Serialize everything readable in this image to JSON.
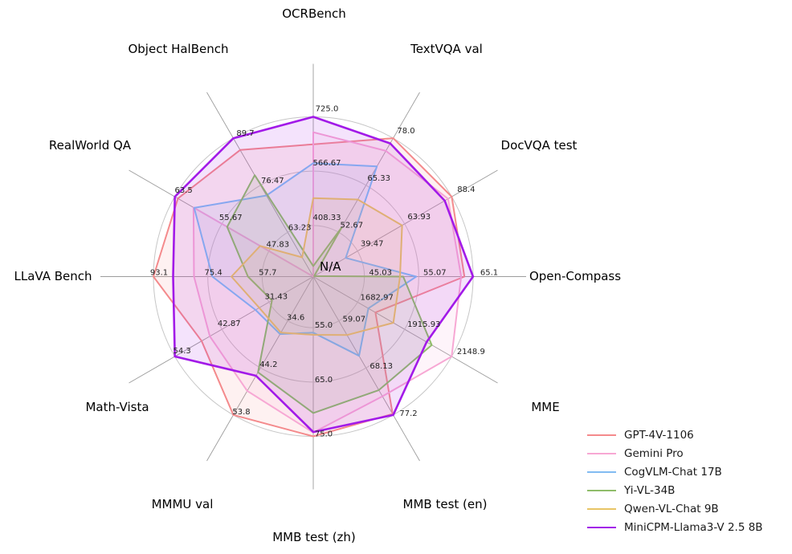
{
  "figure": {
    "background": "#ffffff",
    "center_label": "N/A"
  },
  "chart_data": {
    "type": "radar",
    "title": "",
    "center_label": "N/A",
    "grid": true,
    "ring_fractions": [
      0.32,
      0.66,
      1.0
    ],
    "legend_position": "lower right",
    "axes": [
      {
        "label": "OCRBench",
        "ticks": [
          "408.33",
          "566.67",
          "725.0"
        ]
      },
      {
        "label": "TextVQA val",
        "ticks": [
          "52.67",
          "65.33",
          "78.0"
        ]
      },
      {
        "label": "DocVQA test",
        "ticks": [
          "39.47",
          "63.93",
          "88.4"
        ]
      },
      {
        "label": "Open-Compass",
        "ticks": [
          "45.03",
          "55.07",
          "65.1"
        ]
      },
      {
        "label": "MME",
        "ticks": [
          "1682.97",
          "1915.93",
          "2148.9"
        ]
      },
      {
        "label": "MMB test (en)",
        "ticks": [
          "59.07",
          "68.13",
          "77.2"
        ]
      },
      {
        "label": "MMB test (zh)",
        "ticks": [
          "55.0",
          "65.0",
          "75.0"
        ]
      },
      {
        "label": "MMMU val",
        "ticks": [
          "34.6",
          "44.2",
          "53.8"
        ]
      },
      {
        "label": "Math-Vista",
        "ticks": [
          "31.43",
          "42.87",
          "54.3"
        ]
      },
      {
        "label": "LLaVA Bench",
        "ticks": [
          "57.7",
          "75.4",
          "93.1"
        ]
      },
      {
        "label": "RealWorld QA",
        "ticks": [
          "47.83",
          "55.67",
          "63.5"
        ]
      },
      {
        "label": "Object HalBench",
        "ticks": [
          "63.23",
          "76.47",
          "89.7"
        ]
      }
    ],
    "series": [
      {
        "name": "GPT-4V-1106",
        "color": "#f48a8c",
        "values": [
          645,
          78.0,
          88.4,
          63.5,
          1771.5,
          77.0,
          75.0,
          53.8,
          47.8,
          93.1,
          63.0,
          86.4
        ]
      },
      {
        "name": "Gemini Pro",
        "color": "#f7a8d4",
        "values": [
          680,
          74.6,
          86.5,
          62.9,
          2148.9,
          73.6,
          74.3,
          48.9,
          45.8,
          79.9,
          60.4,
          null
        ]
      },
      {
        "name": "CogVLM-Chat 17B",
        "color": "#82bbf2",
        "values": [
          590,
          70.4,
          33.3,
          54.6,
          1736.6,
          65.8,
          55.9,
          37.3,
          34.7,
          73.9,
          60.3,
          73.6
        ]
      },
      {
        "name": "Yi-VL-34B",
        "color": "#8fbd69",
        "values": [
          290,
          54.0,
          16.9,
          52.2,
          2050.2,
          72.4,
          70.7,
          45.1,
          30.7,
          62.3,
          54.8,
          79.3
        ]
      },
      {
        "name": "Qwen-VL-Chat 9B",
        "color": "#e8c465",
        "values": [
          488,
          61.5,
          62.6,
          51.6,
          1860.0,
          61.8,
          56.3,
          37.0,
          33.8,
          67.7,
          49.3,
          56.2
        ]
      },
      {
        "name": "MiniCPM-Llama3-V 2.5 8B",
        "color": "#a21ae8",
        "values": [
          725,
          76.6,
          84.8,
          65.1,
          2024.6,
          77.2,
          74.2,
          45.8,
          54.3,
          86.7,
          63.5,
          89.7
        ]
      }
    ]
  }
}
